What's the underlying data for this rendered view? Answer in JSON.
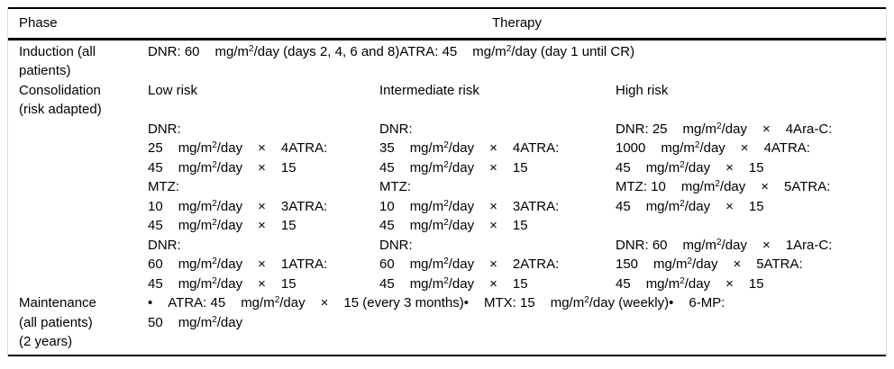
{
  "colors": {
    "text": "#000000",
    "background": "#ffffff",
    "rule": "#000000",
    "edge": "#d9d9d9"
  },
  "table": {
    "header": {
      "phase": "Phase",
      "therapy": "Therapy"
    },
    "rows": [
      {
        "name": "induction",
        "phase_lines": [
          "Induction (all",
          "patients)"
        ],
        "therapy_lines": [
          [
            "DNR: 60",
            "mg/m²/day (days 2, 4, 6 and 8)ATRA: 45",
            "mg/m²/day (day 1 until CR)"
          ]
        ]
      },
      {
        "name": "consolidation",
        "phase_lines": [
          "Consolidation",
          "(risk adapted)"
        ],
        "columns": [
          {
            "name": "low-risk",
            "title": "Low risk",
            "lines": [
              [
                "Low risk"
              ],
              [],
              [
                "DNR:"
              ],
              [
                "25",
                "mg/m²/day",
                "×",
                "4ATRA:"
              ],
              [
                "45",
                "mg/m²/day",
                "×",
                "15"
              ],
              [
                "MTZ:"
              ],
              [
                "10",
                "mg/m²/day",
                "×",
                "3ATRA:"
              ],
              [
                "45",
                "mg/m²/day",
                "×",
                "15"
              ],
              [
                "DNR:"
              ],
              [
                "60",
                "mg/m²/day",
                "×",
                "1ATRA:"
              ],
              [
                "45",
                "mg/m²/day",
                "×",
                "15"
              ]
            ]
          },
          {
            "name": "intermediate-risk",
            "title": "Intermediate risk",
            "lines": [
              [
                "Intermediate risk"
              ],
              [],
              [
                "DNR:"
              ],
              [
                "35",
                "mg/m²/day",
                "×",
                "4ATRA:"
              ],
              [
                "45",
                "mg/m²/day",
                "×",
                "15"
              ],
              [
                "MTZ:"
              ],
              [
                "10",
                "mg/m²/day",
                "×",
                "3ATRA:"
              ],
              [
                "45",
                "mg/m²/day",
                "×",
                "15"
              ],
              [
                "DNR:"
              ],
              [
                "60",
                "mg/m²/day",
                "×",
                "2ATRA:"
              ],
              [
                "45",
                "mg/m²/day",
                "×",
                "15"
              ]
            ]
          },
          {
            "name": "high-risk",
            "title": "High risk",
            "lines": [
              [
                "High risk"
              ],
              [],
              [
                "DNR: 25",
                "mg/m²/day",
                "×",
                "4Ara-C:"
              ],
              [
                "1000",
                "mg/m²/day",
                "×",
                "4ATRA:"
              ],
              [
                "45",
                "mg/m²/day",
                "×",
                "15"
              ],
              [
                "MTZ: 10",
                "mg/m²/day",
                "×",
                "5ATRA:"
              ],
              [
                "45",
                "mg/m²/day",
                "×",
                "15"
              ],
              [],
              [
                "DNR: 60",
                "mg/m²/day",
                "×",
                "1Ara-C:"
              ],
              [
                "150",
                "mg/m²/day",
                "×",
                "5ATRA:"
              ],
              [
                "45",
                "mg/m²/day",
                "×",
                "15"
              ]
            ]
          }
        ]
      },
      {
        "name": "maintenance",
        "phase_lines": [
          "Maintenance",
          "(all patients)",
          "(2 years)"
        ],
        "therapy_lines": [
          [
            "•",
            "ATRA: 45",
            "mg/m²/day",
            "×",
            "15 (every 3 months)•",
            "MTX: 15",
            "mg/m²/day (weekly)•",
            "6-MP:"
          ],
          [
            "50",
            "mg/m²/day"
          ]
        ]
      }
    ]
  }
}
